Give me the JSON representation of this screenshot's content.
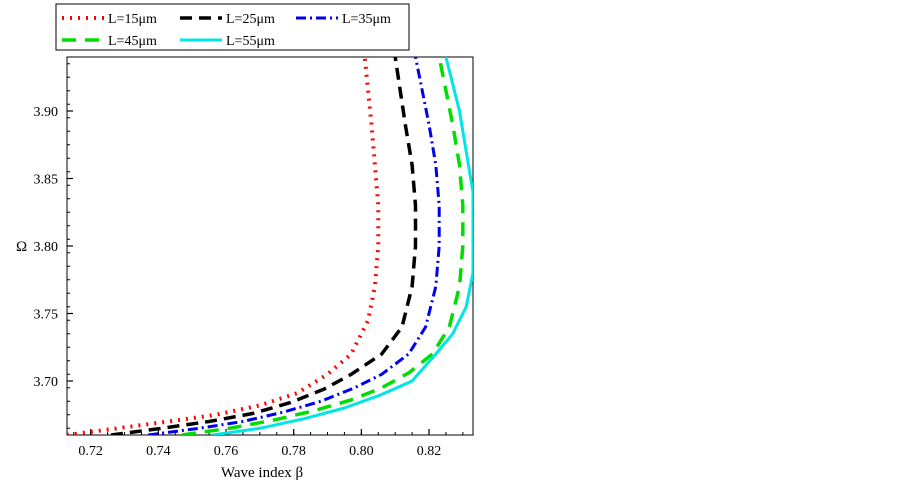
{
  "chart_data": {
    "type": "line",
    "title": "",
    "xlabel": "Wave index β",
    "ylabel": "Ω",
    "xlim": [
      0.713,
      0.833
    ],
    "ylim": [
      3.66,
      3.94
    ],
    "xticks": [
      0.72,
      0.74,
      0.76,
      0.78,
      0.8,
      0.82
    ],
    "yticks": [
      3.7,
      3.75,
      3.8,
      3.85,
      3.9
    ],
    "xtick_labels": [
      "0.72",
      "0.74",
      "0.76",
      "0.78",
      "0.80",
      "0.82"
    ],
    "ytick_labels": [
      "3.70",
      "3.75",
      "3.80",
      "3.85",
      "3.90"
    ],
    "grid": false,
    "legend_position": "top-left",
    "series": [
      {
        "name": "L=15μm",
        "color": "#ff0000",
        "dash": "2,6",
        "width": 4,
        "x": [
          0.713,
          0.728,
          0.743,
          0.757,
          0.77,
          0.781,
          0.79,
          0.797,
          0.802,
          0.804,
          0.805,
          0.805,
          0.804,
          0.803,
          0.801
        ],
        "y": [
          3.66,
          3.665,
          3.67,
          3.675,
          3.682,
          3.691,
          3.705,
          3.72,
          3.745,
          3.77,
          3.8,
          3.83,
          3.86,
          3.89,
          3.94
        ]
      },
      {
        "name": "L=25μm",
        "color": "#000000",
        "dash": "12,7",
        "width": 3.5,
        "x": [
          0.726,
          0.741,
          0.755,
          0.768,
          0.779,
          0.789,
          0.797,
          0.806,
          0.812,
          0.815,
          0.816,
          0.816,
          0.815,
          0.813,
          0.81
        ],
        "y": [
          3.66,
          3.665,
          3.67,
          3.676,
          3.684,
          3.694,
          3.705,
          3.72,
          3.74,
          3.77,
          3.8,
          3.83,
          3.86,
          3.89,
          3.94
        ]
      },
      {
        "name": "L=35μm",
        "color": "#0000ee",
        "dash": "10,4,2,4",
        "width": 3,
        "x": [
          0.737,
          0.752,
          0.765,
          0.777,
          0.788,
          0.798,
          0.806,
          0.814,
          0.819,
          0.822,
          0.823,
          0.823,
          0.822,
          0.82,
          0.816
        ],
        "y": [
          3.66,
          3.665,
          3.67,
          3.677,
          3.685,
          3.695,
          3.705,
          3.72,
          3.74,
          3.77,
          3.8,
          3.83,
          3.86,
          3.89,
          3.94
        ]
      },
      {
        "name": "L=45μm",
        "color": "#00dd00",
        "dash": "14,9",
        "width": 3.5,
        "x": [
          0.747,
          0.761,
          0.774,
          0.786,
          0.797,
          0.806,
          0.814,
          0.821,
          0.826,
          0.829,
          0.83,
          0.83,
          0.829,
          0.827,
          0.823
        ],
        "y": [
          3.66,
          3.665,
          3.671,
          3.678,
          3.686,
          3.695,
          3.706,
          3.72,
          3.74,
          3.77,
          3.8,
          3.83,
          3.86,
          3.89,
          3.94
        ]
      },
      {
        "name": "L=55μm",
        "color": "#00e5e5",
        "dash": "",
        "width": 3,
        "x": [
          0.756,
          0.77,
          0.783,
          0.795,
          0.806,
          0.815,
          0.822,
          0.827,
          0.831,
          0.833,
          0.833,
          0.833,
          0.831,
          0.829,
          0.825
        ],
        "y": [
          3.66,
          3.665,
          3.672,
          3.68,
          3.69,
          3.7,
          3.72,
          3.735,
          3.755,
          3.78,
          3.81,
          3.84,
          3.87,
          3.9,
          3.94
        ]
      }
    ]
  }
}
